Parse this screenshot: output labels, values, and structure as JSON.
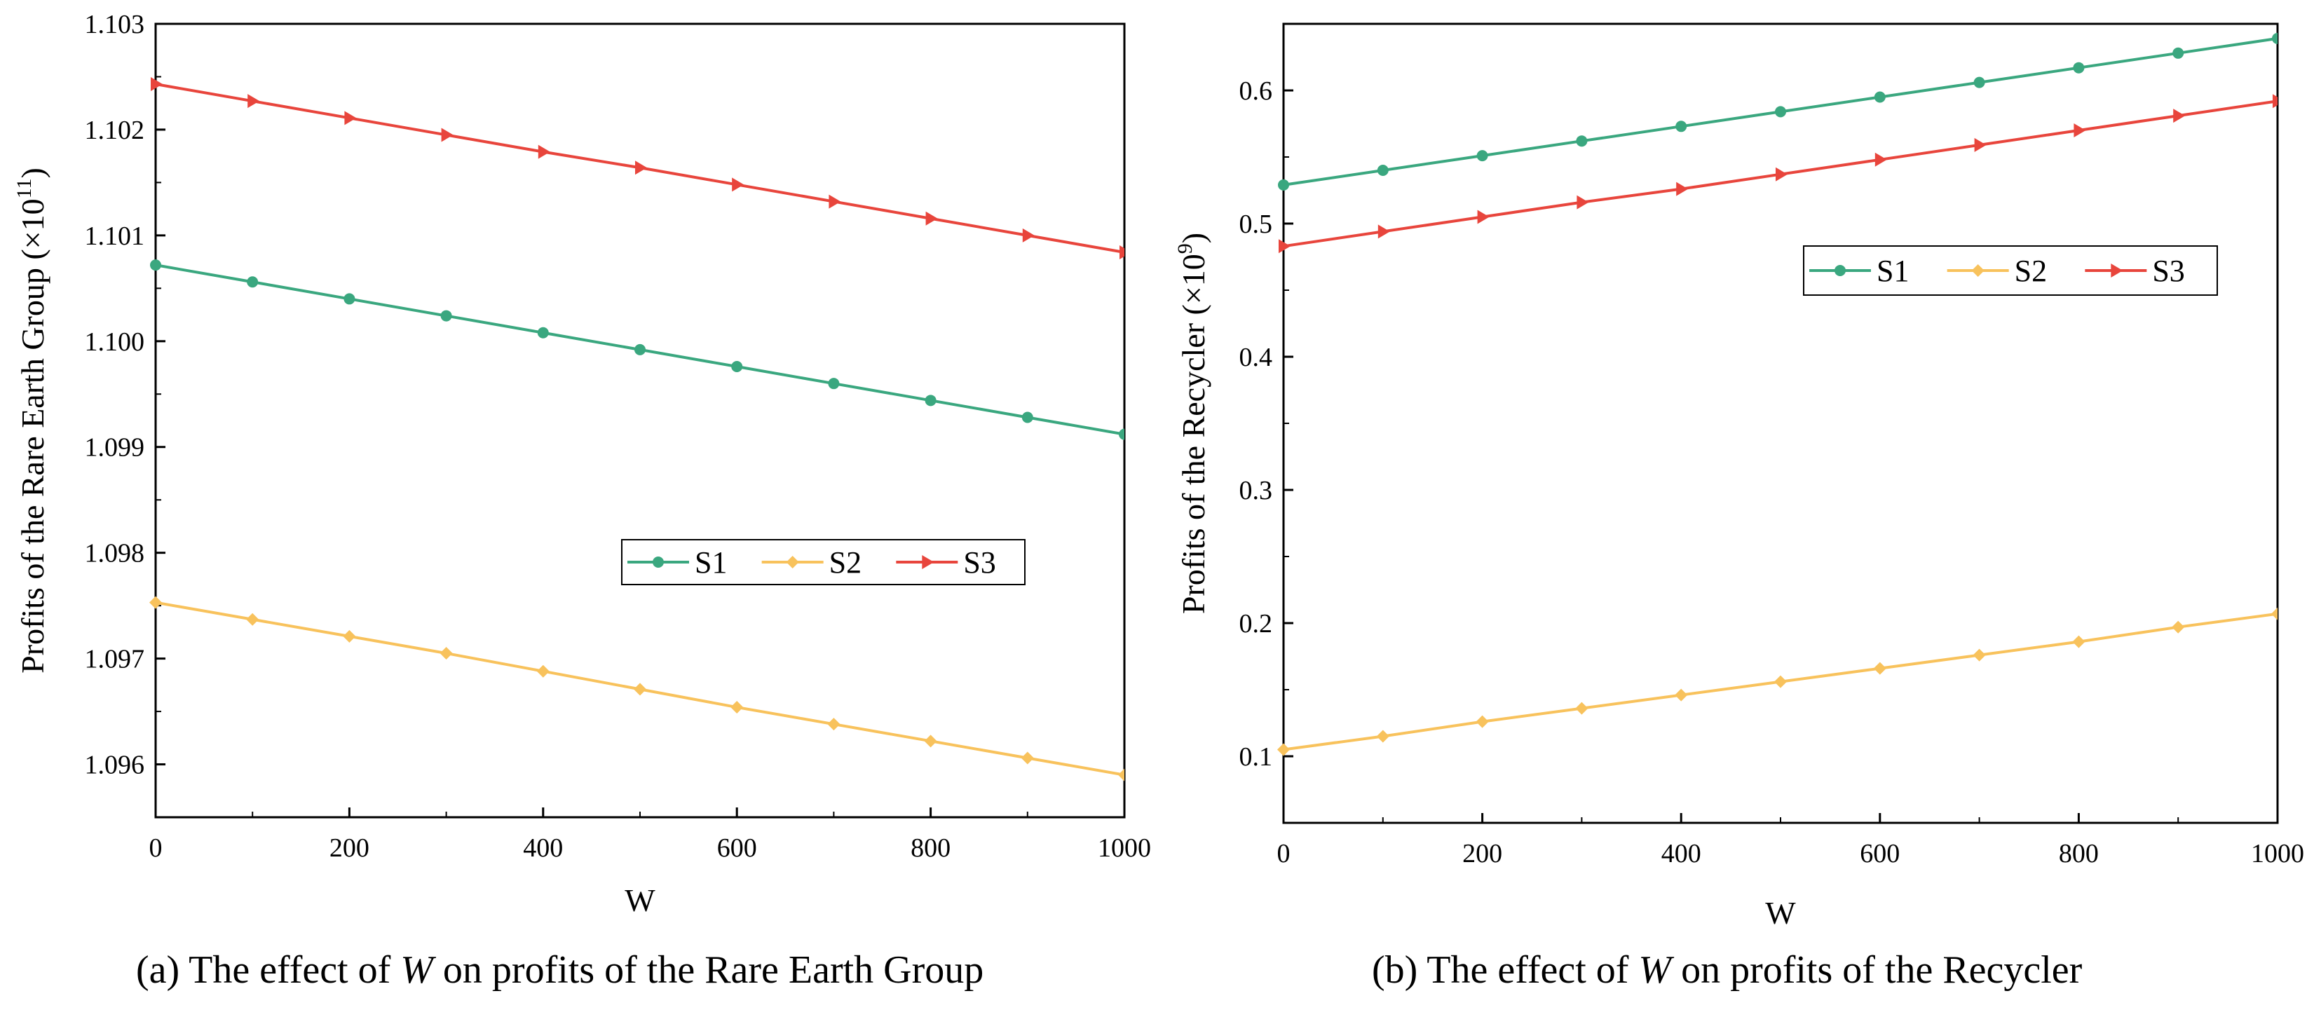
{
  "chart_data": [
    {
      "type": "line",
      "caption": {
        "prefix": "(a) The effect of ",
        "variable": "W",
        "suffix": " on profits of the Rare Earth Group"
      },
      "xlabel": "W",
      "ylabel": "Profits of the Rare Earth Group (×10",
      "ylabel_exponent": "11",
      "ylabel_close": ")",
      "xlim": [
        0,
        1000
      ],
      "ylim": [
        1.0955,
        1.103
      ],
      "xticks": [
        "0",
        "200",
        "400",
        "600",
        "800",
        "1000"
      ],
      "yticks": [
        "1.096",
        "1.097",
        "1.098",
        "1.099",
        "1.100",
        "1.101",
        "1.102",
        "1.103"
      ],
      "legend_position": "center-right",
      "x": [
        0,
        100,
        200,
        300,
        400,
        500,
        600,
        700,
        800,
        900,
        1000
      ],
      "series": [
        {
          "name": "S1",
          "color": "#3aa77f",
          "marker": "circle",
          "values": [
            1.10072,
            1.10056,
            1.1004,
            1.10024,
            1.10008,
            1.09992,
            1.09976,
            1.0996,
            1.09944,
            1.09928,
            1.09912
          ]
        },
        {
          "name": "S2",
          "color": "#f8c25c",
          "marker": "diamond",
          "values": [
            1.09753,
            1.09737,
            1.09721,
            1.09705,
            1.09688,
            1.09671,
            1.09654,
            1.09638,
            1.09622,
            1.09606,
            1.0959
          ]
        },
        {
          "name": "S3",
          "color": "#e8453c",
          "marker": "triangle-right",
          "values": [
            1.10243,
            1.10227,
            1.10211,
            1.10195,
            1.10179,
            1.10164,
            1.10148,
            1.10132,
            1.10116,
            1.101,
            1.10084
          ]
        }
      ]
    },
    {
      "type": "line",
      "caption": {
        "prefix": "(b) The effect of ",
        "variable": "W",
        "suffix": " on profits of the Recycler"
      },
      "xlabel": "W",
      "ylabel": "Profits of the Recycler (×10",
      "ylabel_exponent": "9",
      "ylabel_close": ")",
      "xlim": [
        0,
        1000
      ],
      "ylim": [
        0.05,
        0.65
      ],
      "xticks": [
        "0",
        "200",
        "400",
        "600",
        "800",
        "1000"
      ],
      "yticks": [
        "0.1",
        "0.2",
        "0.3",
        "0.4",
        "0.5",
        "0.6"
      ],
      "legend_position": "upper-right",
      "x": [
        0,
        100,
        200,
        300,
        400,
        500,
        600,
        700,
        800,
        900,
        1000
      ],
      "series": [
        {
          "name": "S1",
          "color": "#3aa77f",
          "marker": "circle",
          "values": [
            0.529,
            0.54,
            0.551,
            0.562,
            0.573,
            0.584,
            0.595,
            0.606,
            0.617,
            0.628,
            0.639
          ]
        },
        {
          "name": "S2",
          "color": "#f8c25c",
          "marker": "diamond",
          "values": [
            0.105,
            0.115,
            0.126,
            0.136,
            0.146,
            0.156,
            0.166,
            0.176,
            0.186,
            0.197,
            0.207
          ]
        },
        {
          "name": "S3",
          "color": "#e8453c",
          "marker": "triangle-right",
          "values": [
            0.483,
            0.494,
            0.505,
            0.516,
            0.526,
            0.537,
            0.548,
            0.559,
            0.57,
            0.581,
            0.592
          ]
        }
      ]
    }
  ]
}
